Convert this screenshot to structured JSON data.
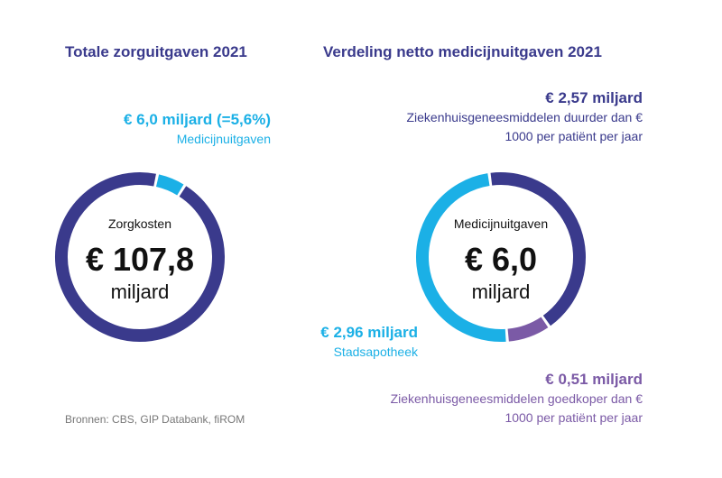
{
  "chart_data": [
    {
      "type": "donut",
      "title": "Totale zorguitgaven 2021",
      "center_texts": [
        "Zorgkosten",
        "€ 107,8",
        "miljard"
      ],
      "categories": [
        "Medicijnuitgaven",
        null
      ],
      "values": [
        6.0,
        101.8
      ],
      "value_labels": [
        "€ 6,0 miljard (=5,6%)",
        null
      ],
      "colors": [
        "#1bb0e6",
        "#3a3a8c"
      ]
    },
    {
      "type": "donut",
      "title": "Verdeling netto medicijnuitgaven 2021",
      "center_texts": [
        "Medicijnuitgaven",
        "€ 6,0",
        "miljard"
      ],
      "categories": [
        "Ziekenhuisgeneesmiddelen duurder dan € 1000 per patiënt per jaar",
        "Ziekenhuisgeneesmiddelen goedkoper dan € 1000 per patiënt per jaar",
        "Stadsapotheek"
      ],
      "values": [
        2.57,
        0.51,
        2.96
      ],
      "value_labels": [
        "€ 2,57 miljard",
        "€ 0,51 miljard",
        "€ 2,96 miljard"
      ],
      "colors": [
        "#3a3a8c",
        "#7b5aa6",
        "#1bb0e6"
      ]
    }
  ],
  "source": "Bronnen: CBS, GIP Databank, fiROM"
}
